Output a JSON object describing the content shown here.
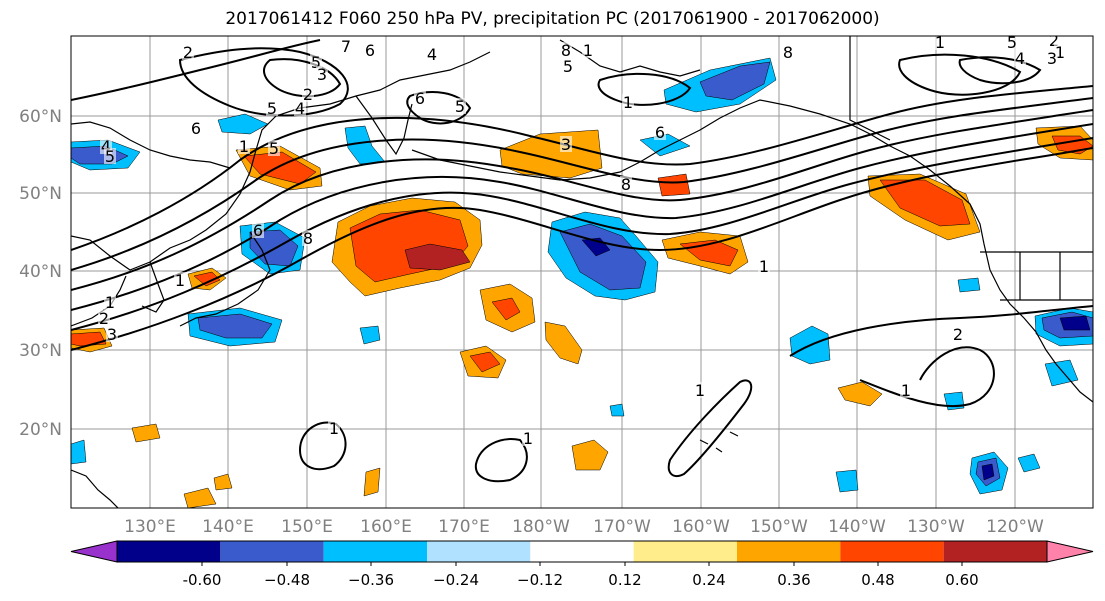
{
  "title": "2017061412 F060 250 hPa PV, precipitation PC (2017061900 - 2017062000)",
  "map": {
    "lat_labels": [
      "60°N",
      "50°N",
      "40°N",
      "30°N",
      "20°N"
    ],
    "lon_labels": [
      "130°E",
      "140°E",
      "150°E",
      "160°E",
      "170°E",
      "180°W",
      "170°W",
      "160°W",
      "150°W",
      "140°W",
      "130°W",
      "120°W"
    ],
    "label_color": "#808080",
    "contour_labels": [
      "2",
      "7",
      "6",
      "4",
      "5",
      "3",
      "2",
      "6",
      "5",
      "4",
      "5",
      "4",
      "1",
      "6",
      "5",
      "8",
      "1",
      "8",
      "5",
      "1",
      "8",
      "6",
      "3",
      "1",
      "8",
      "6",
      "5",
      "1",
      "1",
      "2",
      "3",
      "2",
      "1",
      "1",
      "1",
      "1",
      "2",
      "1",
      "1",
      "5",
      "4",
      "3"
    ]
  },
  "colorbar": {
    "levels": [
      "-0.60",
      "−0.48",
      "−0.36",
      "−0.24",
      "−0.12",
      "0.12",
      "0.24",
      "0.36",
      "0.48",
      "0.60"
    ],
    "colors": [
      "#9932cc",
      "#00008b",
      "#3a5bcb",
      "#00bfff",
      "#b0e2ff",
      "#ffffff",
      "#ffec8b",
      "#ffa500",
      "#ff4500",
      "#b22222",
      "#ff82ab"
    ]
  }
}
